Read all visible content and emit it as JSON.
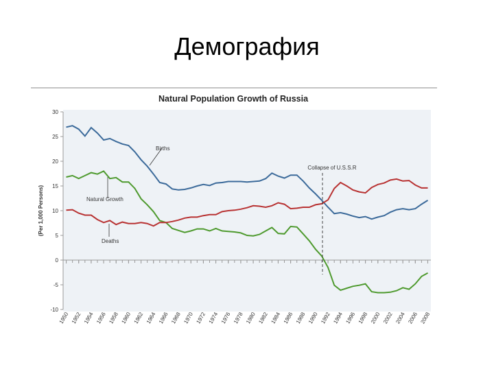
{
  "slide_title": "Демография",
  "chart_data": {
    "type": "line",
    "title": "Natural Population Growth of Russia",
    "y_label": "(Per 1,000 Persons)",
    "x": [
      1950,
      1951,
      1952,
      1953,
      1954,
      1955,
      1956,
      1957,
      1958,
      1959,
      1960,
      1961,
      1962,
      1963,
      1964,
      1965,
      1966,
      1967,
      1968,
      1969,
      1970,
      1971,
      1972,
      1973,
      1974,
      1975,
      1976,
      1977,
      1978,
      1979,
      1980,
      1981,
      1982,
      1983,
      1984,
      1985,
      1986,
      1987,
      1988,
      1989,
      1990,
      1991,
      1992,
      1993,
      1994,
      1995,
      1996,
      1997,
      1998,
      1999,
      2000,
      2001,
      2002,
      2003,
      2004,
      2005,
      2006,
      2007,
      2008
    ],
    "series": [
      {
        "name": "Births",
        "color": "#3b6a9a",
        "values": [
          26.9,
          27.2,
          26.5,
          25.1,
          26.8,
          25.7,
          24.3,
          24.6,
          24.0,
          23.5,
          23.2,
          21.9,
          20.3,
          19.0,
          17.4,
          15.7,
          15.4,
          14.4,
          14.2,
          14.3,
          14.6,
          15.0,
          15.3,
          15.1,
          15.6,
          15.7,
          15.9,
          15.9,
          15.9,
          15.8,
          15.9,
          16.0,
          16.5,
          17.6,
          17.0,
          16.6,
          17.2,
          17.2,
          16.0,
          14.6,
          13.4,
          12.1,
          10.7,
          9.4,
          9.6,
          9.3,
          8.9,
          8.6,
          8.8,
          8.3,
          8.7,
          9.0,
          9.7,
          10.2,
          10.4,
          10.2,
          10.4,
          11.3,
          12.1
        ]
      },
      {
        "name": "Natural Growth",
        "color": "#4e9a2e",
        "values": [
          16.8,
          17.1,
          16.5,
          17.1,
          17.7,
          17.4,
          18.0,
          16.5,
          16.7,
          15.8,
          15.8,
          14.5,
          12.4,
          11.2,
          9.8,
          8.0,
          7.6,
          6.4,
          6.0,
          5.6,
          5.9,
          6.3,
          6.3,
          5.9,
          6.4,
          5.9,
          5.8,
          5.7,
          5.5,
          5.0,
          4.9,
          5.2,
          5.9,
          6.6,
          5.4,
          5.3,
          6.8,
          6.7,
          5.3,
          3.9,
          2.2,
          0.8,
          -1.5,
          -5.1,
          -6.1,
          -5.7,
          -5.3,
          -5.1,
          -4.8,
          -6.4,
          -6.6,
          -6.6,
          -6.5,
          -6.2,
          -5.6,
          -5.9,
          -4.8,
          -3.3,
          -2.6
        ]
      },
      {
        "name": "Deaths",
        "color": "#b83232",
        "values": [
          10.1,
          10.2,
          9.5,
          9.1,
          9.1,
          8.2,
          7.6,
          8.0,
          7.2,
          7.7,
          7.4,
          7.4,
          7.6,
          7.4,
          6.9,
          7.6,
          7.6,
          7.8,
          8.1,
          8.5,
          8.7,
          8.7,
          9.0,
          9.2,
          9.2,
          9.8,
          10.0,
          10.1,
          10.3,
          10.6,
          11.0,
          10.9,
          10.7,
          11.0,
          11.6,
          11.3,
          10.4,
          10.5,
          10.7,
          10.7,
          11.2,
          11.4,
          12.2,
          14.5,
          15.7,
          15.0,
          14.2,
          13.8,
          13.6,
          14.7,
          15.3,
          15.6,
          16.2,
          16.4,
          16.0,
          16.1,
          15.2,
          14.6,
          14.6
        ]
      }
    ],
    "annotations": [
      "Collapse of U.S.S.R"
    ],
    "xlim": [
      1949.5,
      2008.5
    ],
    "xticks": [
      1950,
      1952,
      1954,
      1956,
      1958,
      1960,
      1962,
      1964,
      1966,
      1968,
      1970,
      1972,
      1974,
      1976,
      1978,
      1980,
      1982,
      1984,
      1986,
      1988,
      1990,
      1992,
      1994,
      1996,
      1998,
      2000,
      2002,
      2004,
      2006,
      2008
    ],
    "ylim": [
      -10,
      30
    ],
    "yticks": [
      -10,
      -5,
      0,
      5,
      10,
      15,
      20,
      25,
      30
    ]
  }
}
